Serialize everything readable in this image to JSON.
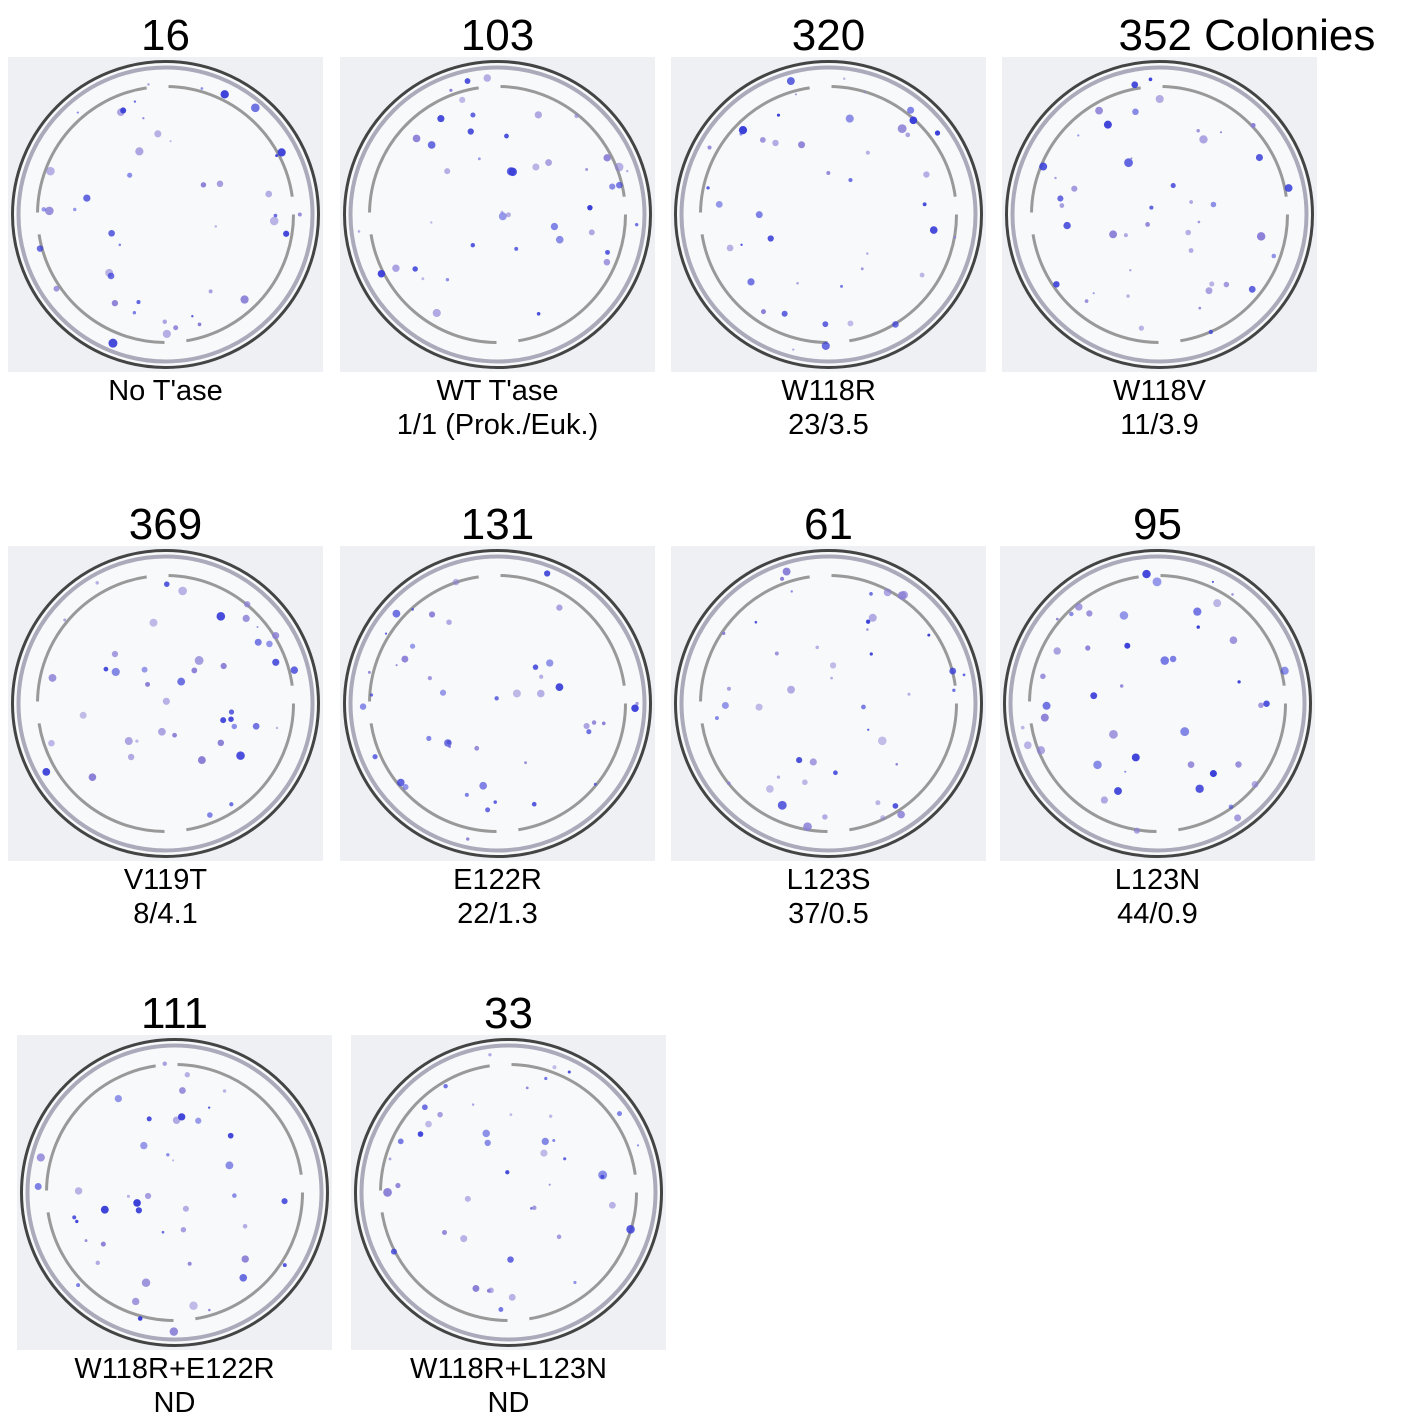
{
  "plates": [
    {
      "count": 16,
      "name": "No T'ase"
    },
    {
      "count": 103,
      "name": "WT T'ase",
      "ratio": "1/1 (Prok./Euk.)"
    },
    {
      "count": 320,
      "name": "W118R",
      "ratio": "23/3.5"
    },
    {
      "count": 352,
      "unit": "Colonies",
      "name": "W118V",
      "ratio": "11/3.9"
    },
    {
      "count": 369,
      "name": "V119T",
      "ratio": "8/4.1"
    },
    {
      "count": 131,
      "name": "E122R",
      "ratio": "22/1.3"
    },
    {
      "count": 61,
      "name": "L123S",
      "ratio": "37/0.5"
    },
    {
      "count": 95,
      "name": "L123N",
      "ratio": "44/0.9"
    },
    {
      "count": 111,
      "name": "W118R+E122R",
      "ratio": "ND"
    },
    {
      "count": 33,
      "name": "W118R+L123N",
      "ratio": "ND"
    }
  ]
}
